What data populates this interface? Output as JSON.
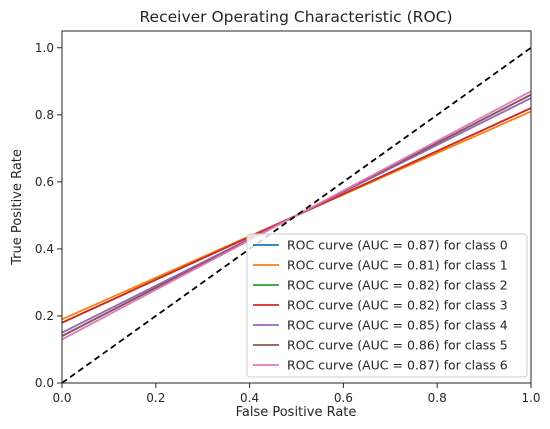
{
  "chart_data": {
    "type": "line",
    "title": "Receiver Operating Characteristic (ROC)",
    "xlabel": "False Positive Rate",
    "ylabel": "True Positive Rate",
    "xlim": [
      0.0,
      1.0
    ],
    "ylim": [
      0.0,
      1.05
    ],
    "xticks": [
      "0.0",
      "0.2",
      "0.4",
      "0.6",
      "0.8",
      "1.0"
    ],
    "yticks": [
      "0.0",
      "0.2",
      "0.4",
      "0.6",
      "0.8",
      "1.0"
    ],
    "grid": false,
    "legend_position": "lower right",
    "diagonal": {
      "x": [
        0,
        1
      ],
      "y": [
        0,
        1
      ],
      "color": "#000000",
      "style": "dashed"
    },
    "series": [
      {
        "name": "ROC curve (AUC = 0.87) for class 0",
        "color": "#1f77b4",
        "x": [
          0,
          1
        ],
        "y": [
          0.14,
          0.86
        ]
      },
      {
        "name": "ROC curve (AUC = 0.81) for class 1",
        "color": "#ff7f0e",
        "x": [
          0,
          1
        ],
        "y": [
          0.19,
          0.81
        ]
      },
      {
        "name": "ROC curve (AUC = 0.82) for class 2",
        "color": "#2ca02c",
        "x": [
          0,
          1
        ],
        "y": [
          0.18,
          0.82
        ]
      },
      {
        "name": "ROC curve (AUC = 0.82) for class 3",
        "color": "#d62728",
        "x": [
          0,
          1
        ],
        "y": [
          0.18,
          0.82
        ]
      },
      {
        "name": "ROC curve (AUC = 0.85) for class 4",
        "color": "#9467bd",
        "x": [
          0,
          1
        ],
        "y": [
          0.15,
          0.85
        ]
      },
      {
        "name": "ROC curve (AUC = 0.86) for class 5",
        "color": "#8c564b",
        "x": [
          0,
          1
        ],
        "y": [
          0.14,
          0.86
        ]
      },
      {
        "name": "ROC curve (AUC = 0.87) for class 6",
        "color": "#e377c2",
        "x": [
          0,
          1
        ],
        "y": [
          0.13,
          0.87
        ]
      }
    ]
  }
}
